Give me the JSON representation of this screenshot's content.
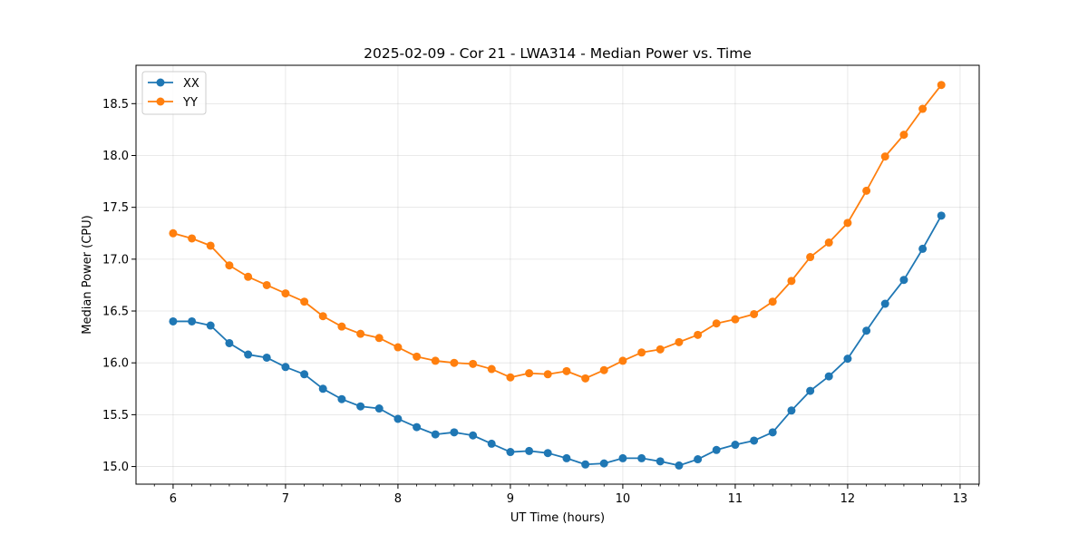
{
  "chart_data": {
    "type": "line",
    "title": "2025-02-09 - Cor 21 - LWA314 - Median Power vs. Time",
    "xlabel": "UT Time (hours)",
    "ylabel": "Median Power (CPU)",
    "xlim": [
      5.67,
      13.17
    ],
    "ylim": [
      14.83,
      18.87
    ],
    "xticks": [
      6,
      7,
      8,
      9,
      10,
      11,
      12,
      13
    ],
    "yticks": [
      15.0,
      15.5,
      16.0,
      16.5,
      17.0,
      17.5,
      18.0,
      18.5
    ],
    "ytick_labels": [
      "15.0",
      "15.5",
      "16.0",
      "16.5",
      "17.0",
      "17.5",
      "18.0",
      "18.5"
    ],
    "grid": true,
    "legend_position": "top-left",
    "x": [
      6.0,
      6.167,
      6.333,
      6.5,
      6.667,
      6.833,
      7.0,
      7.167,
      7.333,
      7.5,
      7.667,
      7.833,
      8.0,
      8.167,
      8.333,
      8.5,
      8.667,
      8.833,
      9.0,
      9.167,
      9.333,
      9.5,
      9.667,
      9.833,
      10.0,
      10.167,
      10.333,
      10.5,
      10.667,
      10.833,
      11.0,
      11.167,
      11.333,
      11.5,
      11.667,
      11.833,
      12.0,
      12.167,
      12.333,
      12.5,
      12.667,
      12.833
    ],
    "series": [
      {
        "name": "XX",
        "color": "#1f77b4",
        "values": [
          16.4,
          16.4,
          16.36,
          16.19,
          16.08,
          16.05,
          15.96,
          15.89,
          15.75,
          15.65,
          15.58,
          15.56,
          15.46,
          15.38,
          15.31,
          15.33,
          15.3,
          15.22,
          15.14,
          15.15,
          15.13,
          15.08,
          15.02,
          15.03,
          15.08,
          15.08,
          15.05,
          15.01,
          15.07,
          15.16,
          15.21,
          15.25,
          15.33,
          15.54,
          15.73,
          15.87,
          16.04,
          16.31,
          16.57,
          16.8,
          17.1,
          17.42
        ]
      },
      {
        "name": "YY",
        "color": "#ff7f0e",
        "values": [
          17.25,
          17.2,
          17.13,
          16.94,
          16.83,
          16.75,
          16.67,
          16.59,
          16.45,
          16.35,
          16.28,
          16.24,
          16.15,
          16.06,
          16.02,
          16.0,
          15.99,
          15.94,
          15.86,
          15.9,
          15.89,
          15.92,
          15.85,
          15.93,
          16.02,
          16.1,
          16.13,
          16.2,
          16.27,
          16.38,
          16.42,
          16.47,
          16.59,
          16.79,
          17.02,
          17.16,
          17.35,
          17.66,
          17.99,
          18.2,
          18.45,
          18.68
        ]
      }
    ]
  }
}
